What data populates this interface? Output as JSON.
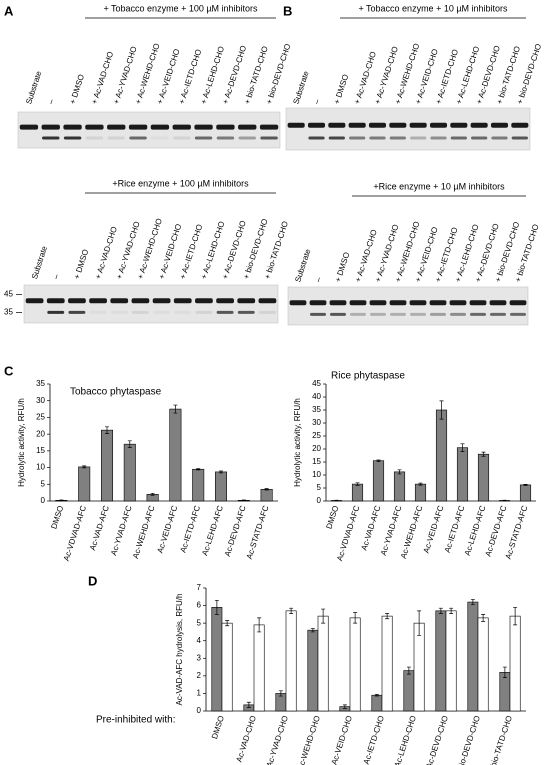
{
  "panels": [
    {
      "label": "A",
      "gels": [
        {
          "header": "+ Tobacco enzyme + 100 µM inhibitors",
          "lanes": [
            "Substrate",
            "–",
            "+ DMSO",
            "+ Ac-VAD-CHO",
            "+ Ac-YVAD-CHO",
            "+ Ac-WEHD-CHO",
            "+ Ac-VEID-CHO",
            "+ Ac-IETD-CHO",
            "+ Ac-LEHD-CHO",
            "+ Ac-DEVD-CHO",
            "+ bio-TATD-CHO",
            "+ bio-DEVD-CHO"
          ]
        },
        {
          "header": "+Rice enzyme + 100 µM inhibitors",
          "lanes": [
            "Substrate",
            "–",
            "+ DMSO",
            "+ Ac-VAD-CHO",
            "+ Ac-YVAD-CHO",
            "+ Ac-WEHD-CHO",
            "+ Ac-VEID-CHO",
            "+ Ac-IETD-CHO",
            "+ Ac-LEHD-CHO",
            "+ Ac-DEVD-CHO",
            "+ bio-DEVD-CHO",
            "+ bio-TATD-CHO"
          ],
          "markers": [
            45,
            35
          ]
        }
      ]
    },
    {
      "label": "B",
      "gels": [
        {
          "header": "+ Tobacco enzyme + 10 µM inhibitors",
          "lanes": [
            "Substrate",
            "–",
            "+ DMSO",
            "+ Ac-VAD-CHO",
            "+ Ac-YVAD-CHO",
            "+ Ac-WEHD-CHO",
            "+ Ac-VEID-CHO",
            "+ Ac-IETD-CHO",
            "+ Ac-LEHD-CHO",
            "+ Ac-DEVD-CHO",
            "+ bio-TATD-CHO",
            "+ bio-DEVD-CHO"
          ]
        },
        {
          "header": "+Rice enzyme + 10 µM inhibitors",
          "lanes": [
            "Substrate",
            "–",
            "+ DMSO",
            "+ Ac-VAD-CHO",
            "+ Ac-YVAD-CHO",
            "+ Ac-WEHD-CHO",
            "+ Ac-VEID-CHO",
            "+ Ac-IETD-CHO",
            "+ Ac-LEHD-CHO",
            "+ Ac-DEVD-CHO",
            "+ bio-DEVD-CHO",
            "+ bio-TATD-CHO"
          ]
        }
      ]
    }
  ],
  "chart_data": [
    {
      "type": "bar",
      "panel": "C",
      "title": "Tobacco phytaspase",
      "ylabel": "Hydrolytic activity, RFU/h",
      "categories": [
        "DMSO",
        "Ac-VDVAD-AFC",
        "Ac-VAD-AFC",
        "Ac-YVAD-AFC",
        "Ac-WEHD-AFC",
        "Ac-VEID-AFC",
        "Ac-IETD-AFC",
        "Ac-LEHD-AFC",
        "Ac-DEVD-AFC",
        "Ac-STATD-AFC"
      ],
      "series": [
        {
          "color": "#808080",
          "values": [
            0.2,
            10.2,
            21.2,
            17,
            2,
            27.5,
            9.5,
            8.7,
            0.2,
            3.5
          ],
          "errors": [
            0.1,
            0.3,
            1,
            1,
            0.3,
            1.2,
            0.2,
            0.3,
            0.1,
            0.2
          ]
        }
      ],
      "ylim": [
        0,
        35
      ],
      "yticks": [
        0,
        5,
        10,
        15,
        20,
        25,
        30,
        35
      ]
    },
    {
      "type": "bar",
      "title": "Rice phytaspase",
      "ylabel": "Hydrolytic activity, RFU/h",
      "categories": [
        "DMSO",
        "Ac-VDVAD-AFC",
        "Ac-VAD-AFC",
        "Ac-YVAD-AFC",
        "Ac-WEHD-AFC",
        "Ac-VEID-AFC",
        "Ac-IETD-AFC",
        "Ac-LEHD-AFC",
        "Ac-DEVD-AFC",
        "Ac-STATD-AFC"
      ],
      "series": [
        {
          "color": "#808080",
          "values": [
            0.2,
            6.5,
            15.5,
            11.2,
            6.5,
            35,
            20.5,
            18,
            0.2,
            6.2
          ],
          "errors": [
            0.1,
            0.5,
            0.3,
            0.8,
            0.4,
            3.5,
            1.5,
            0.8,
            0.1,
            0.2
          ]
        }
      ],
      "ylim": [
        0,
        45
      ],
      "yticks": [
        0,
        5,
        10,
        15,
        20,
        25,
        30,
        35,
        40,
        45
      ]
    },
    {
      "type": "bar",
      "panel": "D",
      "ylabel": "Ac-VAD-AFC hydrolysis, RFU/h",
      "annotation": "Pre-inhibited with:",
      "categories": [
        "DMSO",
        "Ac-VAD-CHO",
        "Ac-YVAD-CHO",
        "Ac-WEHD-CHO",
        "Ac-VEID-CHO",
        "Ac-IETD-CHO",
        "Ac-LEHD-CHO",
        "Ac-DEVD-CHO",
        "bio-DEVD-CHO",
        "bio-TATD-CHO"
      ],
      "series": [
        {
          "color": "#808080",
          "values": [
            5.9,
            0.35,
            1.0,
            4.6,
            0.25,
            0.9,
            2.3,
            5.7,
            6.2,
            2.2
          ],
          "errors": [
            0.4,
            0.15,
            0.15,
            0.1,
            0.1,
            0.05,
            0.2,
            0.15,
            0.15,
            0.3
          ]
        },
        {
          "color": "#ffffff",
          "values": [
            5.0,
            4.9,
            5.7,
            5.4,
            5.3,
            5.4,
            5.0,
            5.7,
            5.3,
            5.4
          ],
          "errors": [
            0.15,
            0.4,
            0.15,
            0.4,
            0.3,
            0.15,
            0.7,
            0.15,
            0.2,
            0.5
          ]
        }
      ],
      "ylim": [
        0,
        7
      ],
      "yticks": [
        0,
        1,
        2,
        3,
        4,
        5,
        6,
        7
      ]
    }
  ]
}
